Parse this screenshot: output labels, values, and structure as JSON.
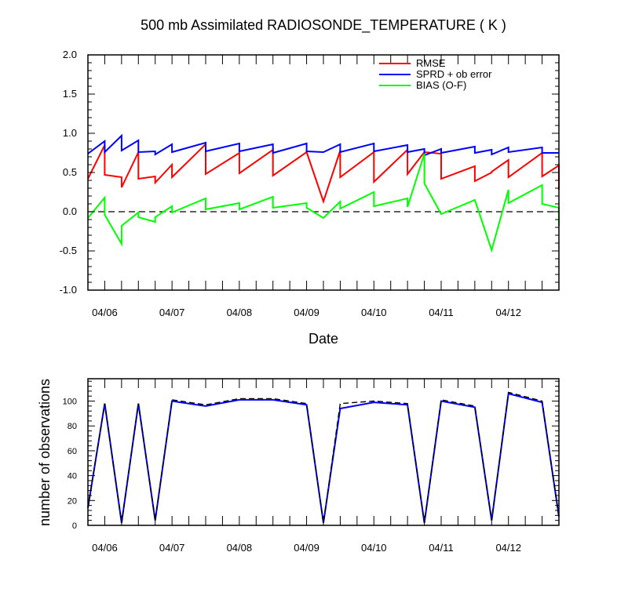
{
  "chart_data": [
    {
      "type": "line",
      "title": "500 mb Assimilated RADIOSONDE_TEMPERATURE ( K )",
      "xlabel": "Date",
      "ylabel": "",
      "ylim": [
        -1.0,
        2.0
      ],
      "yticks": [
        "2.0",
        "1.5",
        "1.0",
        "0.5",
        "0.0",
        "-0.5",
        "-1.0"
      ],
      "xticks": [
        "04/06",
        "04/07",
        "04/08",
        "04/09",
        "04/10",
        "04/11",
        "04/12"
      ],
      "zero_line": "dashed",
      "legend": "top-right",
      "x_domain": [
        5.75,
        12.75
      ],
      "series": [
        {
          "name": "RMSE",
          "color": "#ff0000",
          "x": [
            5.75,
            6.0,
            6.0,
            6.25,
            6.25,
            6.5,
            6.5,
            6.75,
            6.75,
            7.0,
            7.0,
            7.5,
            7.5,
            8.0,
            8.0,
            8.5,
            8.5,
            9.0,
            9.0,
            9.25,
            9.25,
            9.5,
            9.5,
            10.0,
            10.0,
            10.5,
            10.5,
            10.75,
            10.75,
            11.0,
            11.0,
            11.5,
            11.5,
            11.75,
            11.75,
            12.0,
            12.0,
            12.5,
            12.5,
            12.75,
            12.75
          ],
          "values": [
            0.42,
            0.85,
            0.47,
            0.44,
            0.31,
            0.76,
            0.42,
            0.45,
            0.37,
            0.6,
            0.44,
            0.86,
            0.48,
            0.75,
            0.49,
            0.79,
            0.46,
            0.76,
            0.76,
            0.13,
            0.13,
            0.78,
            0.44,
            0.76,
            0.38,
            0.79,
            0.48,
            0.76,
            0.76,
            0.74,
            0.42,
            0.58,
            0.39,
            0.5,
            0.51,
            0.66,
            0.44,
            0.75,
            0.45,
            0.59,
            0.28
          ]
        },
        {
          "name": "SPRD + ob error",
          "color": "#0000ff",
          "x": [
            5.75,
            6.0,
            6.0,
            6.25,
            6.25,
            6.5,
            6.5,
            6.75,
            6.75,
            7.0,
            7.0,
            7.5,
            7.5,
            8.0,
            8.0,
            8.5,
            8.5,
            9.0,
            9.0,
            9.25,
            9.25,
            9.5,
            9.5,
            10.0,
            10.0,
            10.5,
            10.5,
            10.75,
            10.75,
            11.0,
            11.0,
            11.5,
            11.5,
            11.75,
            11.75,
            12.0,
            12.0,
            12.5,
            12.5,
            12.75
          ],
          "values": [
            0.74,
            0.9,
            0.76,
            0.97,
            0.78,
            0.91,
            0.76,
            0.77,
            0.73,
            0.86,
            0.76,
            0.88,
            0.77,
            0.87,
            0.77,
            0.86,
            0.75,
            0.87,
            0.77,
            0.76,
            0.76,
            0.86,
            0.76,
            0.87,
            0.77,
            0.85,
            0.76,
            0.8,
            0.72,
            0.8,
            0.75,
            0.83,
            0.75,
            0.79,
            0.73,
            0.82,
            0.76,
            0.82,
            0.75,
            0.75
          ]
        },
        {
          "name": "BIAS (O-F)",
          "color": "#00ff00",
          "x": [
            5.75,
            6.0,
            6.0,
            6.25,
            6.25,
            6.5,
            6.5,
            6.75,
            6.75,
            7.0,
            7.0,
            7.5,
            7.5,
            8.0,
            8.0,
            8.5,
            8.5,
            9.0,
            9.0,
            9.25,
            9.25,
            9.5,
            9.5,
            10.0,
            10.0,
            10.5,
            10.5,
            10.75,
            10.75,
            11.0,
            11.0,
            11.5,
            11.5,
            11.75,
            11.75,
            12.0,
            12.0,
            12.5,
            12.5,
            12.75,
            12.75
          ],
          "values": [
            -0.08,
            0.18,
            -0.04,
            -0.41,
            -0.18,
            -0.01,
            -0.07,
            -0.13,
            -0.07,
            0.07,
            -0.01,
            0.17,
            0.03,
            0.11,
            0.03,
            0.19,
            0.05,
            0.11,
            0.05,
            -0.08,
            -0.08,
            0.13,
            0.04,
            0.25,
            0.07,
            0.17,
            0.06,
            0.74,
            0.36,
            -0.03,
            -0.03,
            0.15,
            0.15,
            -0.49,
            -0.49,
            0.28,
            0.11,
            0.34,
            0.1,
            0.05,
            -0.18
          ]
        }
      ]
    },
    {
      "type": "line",
      "title": "",
      "xlabel": "",
      "ylabel": "number of observations",
      "ylim": [
        0,
        118
      ],
      "yticks": [
        "100",
        "80",
        "60",
        "40",
        "20",
        "0"
      ],
      "xticks": [
        "04/06",
        "04/07",
        "04/08",
        "04/09",
        "04/10",
        "04/11",
        "04/12"
      ],
      "x_domain": [
        5.75,
        12.75
      ],
      "series": [
        {
          "color": "#0000ff",
          "style": "solid",
          "x": [
            5.75,
            6.0,
            6.25,
            6.5,
            6.75,
            7.0,
            7.5,
            8.0,
            8.5,
            9.0,
            9.25,
            9.5,
            10.0,
            10.5,
            10.75,
            11.0,
            11.5,
            11.75,
            12.0,
            12.5,
            12.75
          ],
          "values": [
            14,
            98,
            2,
            98,
            4,
            100,
            96,
            101,
            101,
            97,
            2,
            94,
            99,
            97,
            2,
            100,
            95,
            4,
            106,
            99,
            7
          ]
        },
        {
          "color": "#000000",
          "style": "dashed",
          "x": [
            5.75,
            6.0,
            6.25,
            6.5,
            6.75,
            7.0,
            7.5,
            8.0,
            8.5,
            9.0,
            9.25,
            9.5,
            10.0,
            10.5,
            10.75,
            11.0,
            11.5,
            11.75,
            12.0,
            12.5,
            12.75
          ],
          "values": [
            14,
            98,
            2,
            98,
            4,
            101,
            97,
            102,
            102,
            98,
            2,
            98,
            100,
            98,
            2,
            101,
            96,
            4,
            107,
            100,
            7
          ]
        }
      ]
    }
  ]
}
